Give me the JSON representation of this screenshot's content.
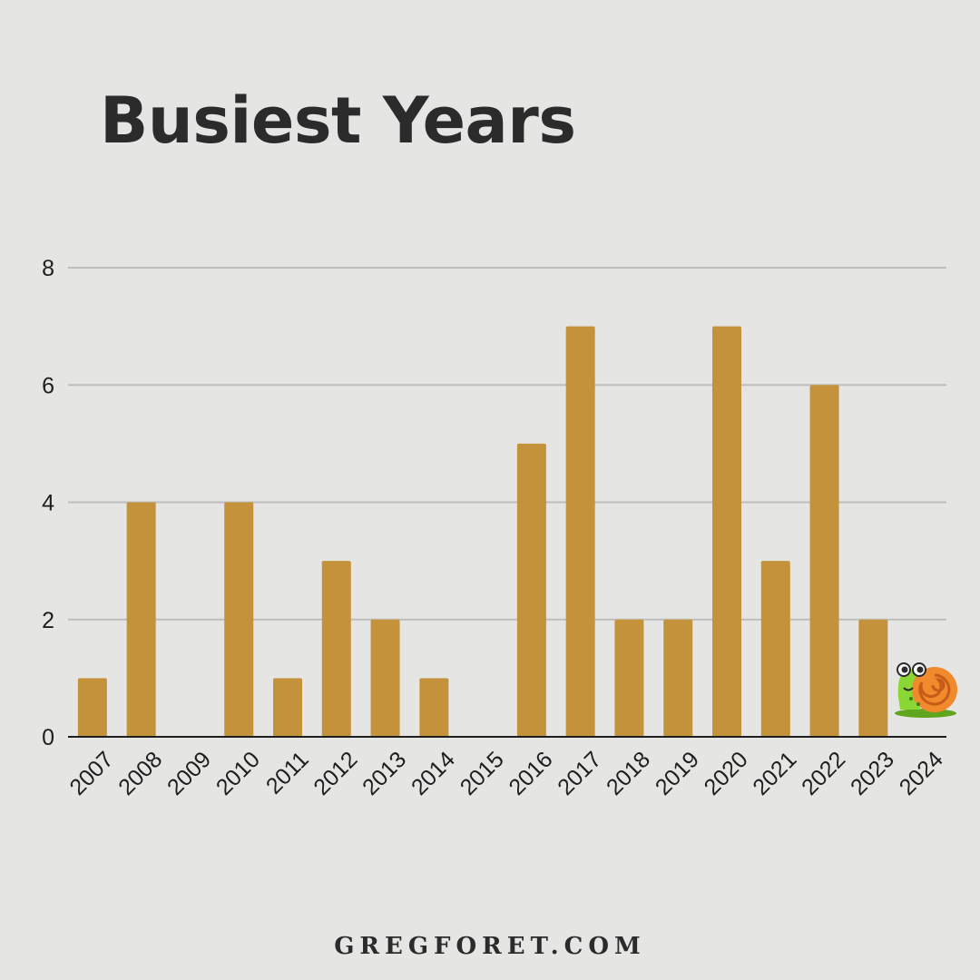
{
  "header": {
    "title": "Busiest Years"
  },
  "footer": {
    "site": "GREGFORET.COM"
  },
  "colors": {
    "bar": "#c4923b",
    "grid": "#bdbdbb",
    "axis": "#1e1e1e",
    "text": "#1e1e1e",
    "background": "#e5e5e3"
  },
  "mascot": {
    "icon": "snail-icon"
  },
  "chart_data": {
    "type": "bar",
    "title": "Busiest Years",
    "xlabel": "",
    "ylabel": "",
    "categories": [
      "2007",
      "2008",
      "2009",
      "2010",
      "2011",
      "2012",
      "2013",
      "2014",
      "2015",
      "2016",
      "2017",
      "2018",
      "2019",
      "2020",
      "2021",
      "2022",
      "2023",
      "2024"
    ],
    "values": [
      1,
      4,
      0,
      4,
      1,
      3,
      2,
      1,
      0,
      5,
      7,
      2,
      2,
      7,
      3,
      6,
      2,
      0
    ],
    "ylim": [
      0,
      8
    ],
    "yticks": [
      0,
      2,
      4,
      6,
      8
    ],
    "grid": true,
    "legend": "none"
  }
}
